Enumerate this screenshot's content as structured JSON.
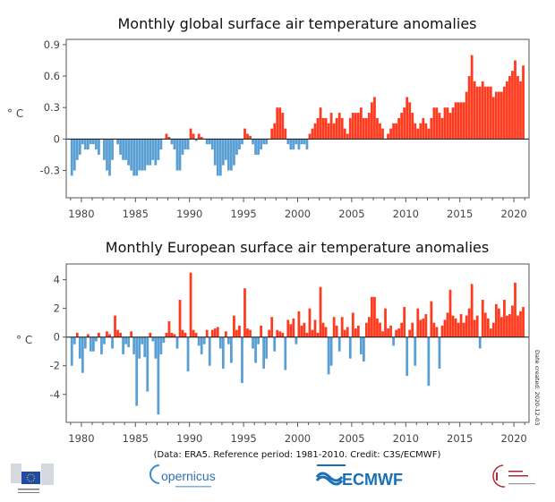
{
  "footer": {
    "credit": "(Data: ERA5.  Reference period: 1981-2010.  Credit: C3S/ECMWF)",
    "date_created": "Date created: 2020-12-03",
    "logos": [
      "European Commission",
      "opernicus",
      "ECMWF",
      "Climate Change Service"
    ],
    "logo_ecmwf_text": "ECMWF",
    "logo_copernicus_text": "opernicus"
  },
  "colors": {
    "positive": "#ff3b1f",
    "negative": "#5a9fd4",
    "axis": "#555555"
  },
  "chart_data": [
    {
      "type": "bar",
      "title": "Monthly global surface air temperature anomalies",
      "ylabel": "° C",
      "xlabel": "",
      "xlim": [
        1978.6,
        2021.4
      ],
      "ylim": [
        -0.56,
        0.95
      ],
      "xticks": [
        1980,
        1985,
        1990,
        1995,
        2000,
        2005,
        2010,
        2015,
        2020
      ],
      "yticks": [
        "-0.3",
        "0",
        "0.3",
        "0.6",
        "0.9"
      ],
      "grid": false,
      "x_start": 1979,
      "values_per_year": 4,
      "values": [
        -0.35,
        -0.3,
        -0.2,
        -0.15,
        -0.05,
        -0.1,
        -0.1,
        -0.05,
        -0.05,
        -0.1,
        -0.15,
        0.0,
        -0.2,
        -0.3,
        -0.35,
        -0.2,
        0.0,
        -0.05,
        -0.15,
        -0.2,
        -0.2,
        -0.25,
        -0.3,
        -0.35,
        -0.35,
        -0.3,
        -0.3,
        -0.3,
        -0.25,
        -0.25,
        -0.2,
        -0.25,
        -0.2,
        -0.1,
        0.0,
        0.05,
        0.02,
        -0.05,
        -0.1,
        -0.3,
        -0.3,
        -0.15,
        -0.1,
        -0.1,
        0.1,
        0.05,
        -0.02,
        0.05,
        0.02,
        0.0,
        -0.05,
        -0.05,
        -0.1,
        -0.25,
        -0.35,
        -0.35,
        -0.25,
        -0.2,
        -0.3,
        -0.3,
        -0.25,
        -0.15,
        -0.1,
        -0.05,
        0.1,
        0.05,
        0.03,
        -0.05,
        -0.15,
        -0.15,
        -0.1,
        -0.05,
        -0.05,
        0.0,
        0.1,
        0.15,
        0.3,
        0.3,
        0.25,
        0.1,
        -0.05,
        -0.1,
        -0.1,
        -0.05,
        -0.1,
        -0.05,
        -0.05,
        -0.1,
        0.05,
        0.1,
        0.15,
        0.2,
        0.3,
        0.2,
        0.2,
        0.15,
        0.25,
        0.15,
        0.2,
        0.25,
        0.2,
        0.1,
        0.05,
        0.2,
        0.25,
        0.25,
        0.25,
        0.3,
        0.2,
        0.2,
        0.25,
        0.35,
        0.4,
        0.2,
        0.15,
        0.1,
        0.0,
        0.05,
        0.1,
        0.15,
        0.15,
        0.2,
        0.25,
        0.3,
        0.4,
        0.35,
        0.25,
        0.15,
        0.1,
        0.15,
        0.2,
        0.15,
        0.1,
        0.2,
        0.3,
        0.3,
        0.25,
        0.2,
        0.3,
        0.3,
        0.25,
        0.3,
        0.35,
        0.35,
        0.35,
        0.35,
        0.45,
        0.6,
        0.8,
        0.55,
        0.5,
        0.5,
        0.55,
        0.5,
        0.5,
        0.5,
        0.4,
        0.45,
        0.45,
        0.45,
        0.5,
        0.55,
        0.6,
        0.65,
        0.75,
        0.6,
        0.55,
        0.7
      ]
    },
    {
      "type": "bar",
      "title": "Monthly European surface air temperature anomalies",
      "ylabel": "° C",
      "xlabel": "",
      "xlim": [
        1978.6,
        2021.4
      ],
      "ylim": [
        -5.95,
        5.1
      ],
      "xticks": [
        1980,
        1985,
        1990,
        1995,
        2000,
        2005,
        2010,
        2015,
        2020
      ],
      "yticks": [
        "-4",
        "-2",
        "0",
        "2",
        "4"
      ],
      "grid": false,
      "x_start": 1979,
      "values_per_year": 4,
      "values": [
        -2,
        -0.5,
        0.3,
        -1.5,
        -2.5,
        -0.8,
        0.2,
        -1.0,
        -1.0,
        -0.3,
        0.3,
        -1.2,
        -0.5,
        0.4,
        0.2,
        -0.8,
        1.5,
        0.5,
        0.3,
        -1.2,
        -0.5,
        -0.7,
        0.4,
        -1.2,
        -4.8,
        -1.5,
        -0.5,
        -1.4,
        -3.8,
        0.3,
        -0.3,
        -1.5,
        -5.4,
        -1.2,
        -0.4,
        0.3,
        1.1,
        0.3,
        0.2,
        -0.8,
        2.6,
        0.5,
        0.3,
        -2.4,
        4.5,
        0.5,
        0.3,
        -0.6,
        -1.2,
        -0.5,
        0.5,
        -2.0,
        0.5,
        0.6,
        0.7,
        -0.8,
        -2.2,
        0.4,
        -0.5,
        -1.8,
        1.5,
        0.5,
        0.8,
        -3.2,
        3.4,
        0.6,
        0.5,
        -0.8,
        -1.8,
        -0.5,
        0.8,
        -2.2,
        -1.5,
        0.5,
        1.4,
        -1.0,
        0.5,
        0.4,
        0.3,
        -2.3,
        1.2,
        0.9,
        1.3,
        -0.5,
        1.8,
        0.8,
        1.0,
        0.3,
        2.0,
        0.5,
        1.2,
        0.3,
        3.5,
        1.0,
        0.7,
        -2.6,
        -2.0,
        1.4,
        0.8,
        -1.0,
        1.4,
        0.5,
        0.7,
        -1.5,
        1.7,
        0.6,
        0.8,
        -1.2,
        -1.7,
        1.0,
        1.4,
        2.8,
        2.8,
        1.3,
        1.0,
        0.4,
        2.0,
        0.6,
        0.8,
        -0.6,
        0.5,
        0.6,
        1.0,
        2.1,
        -2.7,
        0.5,
        1.0,
        -2.0,
        2.0,
        1.2,
        1.3,
        1.6,
        -3.4,
        2.5,
        1.0,
        0.7,
        -2.2,
        0.8,
        1.2,
        1.7,
        3.3,
        1.5,
        1.3,
        1.0,
        1.6,
        1.0,
        1.5,
        2.0,
        3.7,
        1.2,
        1.5,
        -0.8,
        2.6,
        1.7,
        1.3,
        0.6,
        1.0,
        2.3,
        2.0,
        1.4,
        2.6,
        1.5,
        1.6,
        2.2,
        3.8,
        1.5,
        1.8,
        2.1
      ]
    }
  ]
}
